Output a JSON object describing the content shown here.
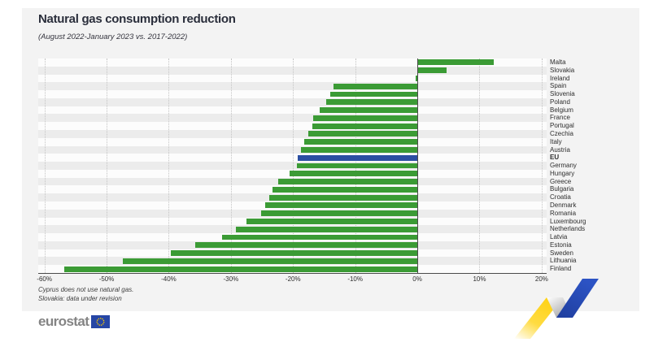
{
  "header": {
    "title": "Natural gas consumption reduction",
    "subtitle": "(August 2022-January 2023 vs. 2017-2022)"
  },
  "footnotes": [
    "Cyprus does not use natural gas.",
    "Slovakia: data under revision"
  ],
  "logo": {
    "text": "eurostat"
  },
  "colors": {
    "bar_green": "#3B9B35",
    "bar_eu_blue": "#2B4FA2",
    "card_bg": "#F3F3F3",
    "row_light": "#FCFCFC",
    "row_dark": "#ECECEC",
    "axis": "#4a4a4a",
    "ribbon_yellow": "#FFD520",
    "ribbon_blue": "#2A4DB8",
    "flag_blue": "#2646A5",
    "flag_stars_yellow": "#FFCC00"
  },
  "chart_data": {
    "type": "bar",
    "orientation": "horizontal",
    "title": "Natural gas consumption reduction",
    "subtitle": "(August 2022-January 2023 vs. 2017-2022)",
    "unit": "%",
    "xlim": [
      -61,
      20.8
    ],
    "grid": "vertical-dotted",
    "zero_line": 0,
    "ticks": [
      {
        "value": -60,
        "label": "-60%"
      },
      {
        "value": -50,
        "label": "-50%"
      },
      {
        "value": -40,
        "label": "-40%"
      },
      {
        "value": -30,
        "label": "-30%"
      },
      {
        "value": -20,
        "label": "-20%"
      },
      {
        "value": -10,
        "label": "-10%"
      },
      {
        "value": 0,
        "label": "0%"
      },
      {
        "value": 10,
        "label": "10%"
      },
      {
        "value": 20,
        "label": "20%"
      }
    ],
    "categories": [
      "Malta",
      "Slovakia",
      "Ireland",
      "Spain",
      "Slovenia",
      "Poland",
      "Belgium",
      "France",
      "Portugal",
      "Czechia",
      "Italy",
      "Austria",
      "EU",
      "Germany",
      "Hungary",
      "Greece",
      "Bulgaria",
      "Croatia",
      "Denmark",
      "Romania",
      "Luxembourg",
      "Netherlands",
      "Latvia",
      "Estonia",
      "Sweden",
      "Lithuania",
      "Finland"
    ],
    "values": [
      12.3,
      4.7,
      -0.3,
      -13.5,
      -14.0,
      -14.7,
      -15.7,
      -16.8,
      -16.9,
      -17.5,
      -18.2,
      -18.7,
      -19.3,
      -19.4,
      -20.5,
      -22.4,
      -23.3,
      -23.8,
      -24.5,
      -25.1,
      -27.5,
      -29.2,
      -31.4,
      -35.7,
      -39.7,
      -47.4,
      -56.8
    ],
    "highlight_category": "EU",
    "bar_color": "#3B9B35",
    "highlight_color": "#2B4FA2",
    "legend": "none"
  }
}
